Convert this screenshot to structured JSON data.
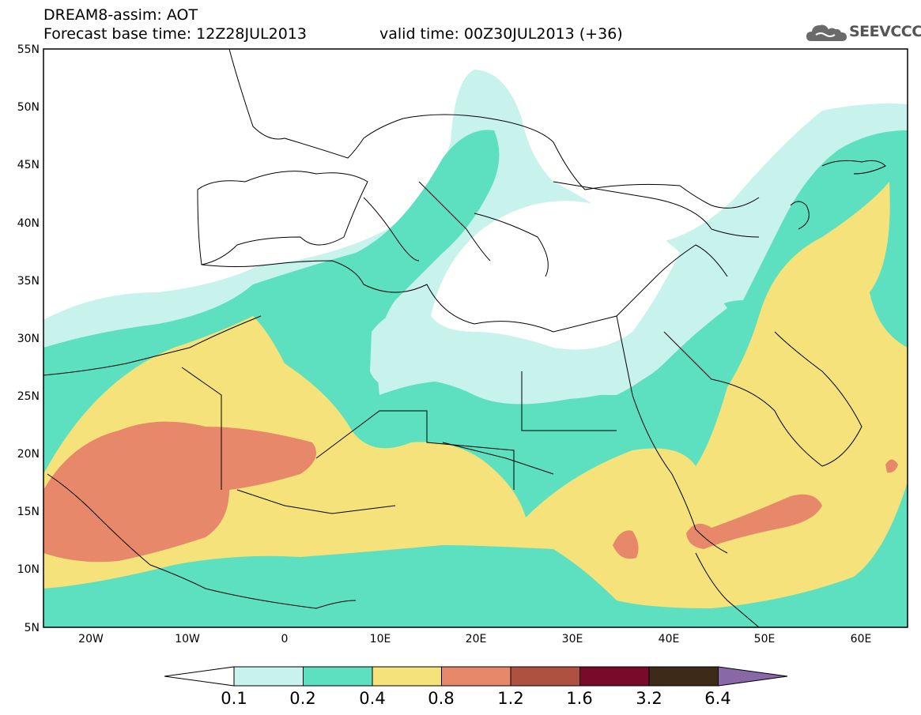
{
  "header": {
    "title_line1": "DREAM8-assim: AOT",
    "title_line2": "Forecast base time: 12Z28JUL2013",
    "valid_time": "valid time: 00Z30JUL2013 (+36)",
    "logo_text": "SEEVCCC"
  },
  "map": {
    "lat_labels": [
      "55N",
      "50N",
      "45N",
      "40N",
      "35N",
      "30N",
      "25N",
      "20N",
      "15N",
      "10N",
      "5N"
    ],
    "lon_labels": [
      "20W",
      "10W",
      "0",
      "10E",
      "20E",
      "30E",
      "40E",
      "50E",
      "60E"
    ]
  },
  "colorbar": {
    "labels": [
      "0.1",
      "0.2",
      "0.4",
      "0.8",
      "1.2",
      "1.6",
      "3.2",
      "6.4"
    ],
    "colors": [
      "#ffffff",
      "#c8f2ec",
      "#5ce0c0",
      "#f5e27a",
      "#e8886a",
      "#b05040",
      "#7a0a2a",
      "#3e2a18",
      "#8a68a8"
    ]
  }
}
